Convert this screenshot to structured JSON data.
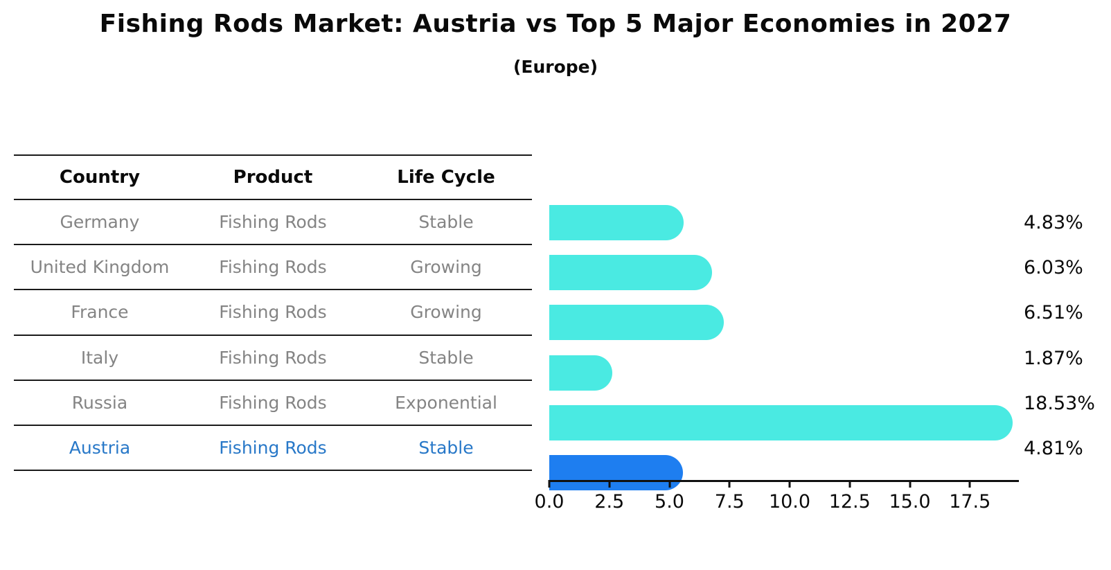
{
  "title": "Fishing Rods Market: Austria vs Top 5 Major Economies in 2027",
  "subtitle": "(Europe)",
  "table": {
    "headers": [
      "Country",
      "Product",
      "Life Cycle"
    ],
    "rows": [
      {
        "country": "Germany",
        "product": "Fishing Rods",
        "life_cycle": "Stable",
        "value": 4.83,
        "value_label": "4.83%",
        "highlight": false
      },
      {
        "country": "United Kingdom",
        "product": "Fishing Rods",
        "life_cycle": "Growing",
        "value": 6.03,
        "value_label": "6.03%",
        "highlight": false
      },
      {
        "country": "France",
        "product": "Fishing Rods",
        "life_cycle": "Growing",
        "value": 6.51,
        "value_label": "6.51%",
        "highlight": false
      },
      {
        "country": "Italy",
        "product": "Fishing Rods",
        "life_cycle": "Stable",
        "value": 1.87,
        "value_label": "1.87%",
        "highlight": false
      },
      {
        "country": "Russia",
        "product": "Fishing Rods",
        "life_cycle": "Exponential",
        "value": 18.53,
        "value_label": "18.53%",
        "highlight": false
      },
      {
        "country": "Austria",
        "product": "Fishing Rods",
        "life_cycle": "Stable",
        "value": 4.81,
        "value_label": "4.81%",
        "highlight": true
      }
    ]
  },
  "chart_data": {
    "type": "bar",
    "orientation": "horizontal",
    "title": "Fishing Rods Market: Austria vs Top 5 Major Economies in 2027",
    "subtitle": "(Europe)",
    "categories": [
      "Germany",
      "United Kingdom",
      "France",
      "Italy",
      "Russia",
      "Austria"
    ],
    "values": [
      4.83,
      6.03,
      6.51,
      1.87,
      18.53,
      4.81
    ],
    "data_labels": [
      "4.83%",
      "6.03%",
      "6.51%",
      "1.87%",
      "18.53%",
      "4.81%"
    ],
    "x_ticks": [
      "0.0",
      "2.5",
      "5.0",
      "7.5",
      "10.0",
      "12.5",
      "15.0",
      "17.5"
    ],
    "x_tick_values": [
      0,
      2.5,
      5,
      7.5,
      10,
      12.5,
      15,
      17.5
    ],
    "xlim": [
      0,
      19.5
    ],
    "grid": false,
    "legend": "none",
    "bar_color": "#4aeae2",
    "highlight_bar_color": "#1e7ef0",
    "highlight_category": "Austria",
    "highlight_text_color": "#2878c8",
    "text_color": "#848484",
    "header_text_color": "#0a0a0a"
  }
}
